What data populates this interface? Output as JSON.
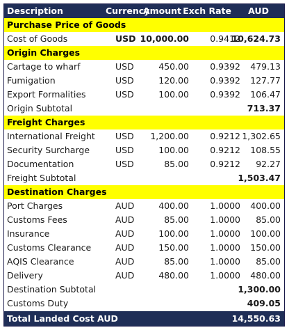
{
  "header": {
    "description": "Description",
    "currency": "Currency",
    "amount": "Amount",
    "exch_rate": "Exch Rate",
    "aud": "AUD"
  },
  "sections": {
    "purchase": {
      "title": "Purchase Price of Goods",
      "rows": [
        {
          "desc": "Cost of Goods",
          "cur": "USD",
          "amt": "10,000.00",
          "rate": "0.9412",
          "aud": "10,624.73"
        }
      ]
    },
    "origin": {
      "title": "Origin Charges",
      "rows": [
        {
          "desc": "Cartage to wharf",
          "cur": "USD",
          "amt": "450.00",
          "rate": "0.9392",
          "aud": "479.13"
        },
        {
          "desc": "Fumigation",
          "cur": "USD",
          "amt": "120.00",
          "rate": "0.9392",
          "aud": "127.77"
        },
        {
          "desc": "Export Formalities",
          "cur": "USD",
          "amt": "100.00",
          "rate": "0.9392",
          "aud": "106.47"
        }
      ],
      "subtotal_label": "Origin Subtotal",
      "subtotal": "713.37"
    },
    "freight": {
      "title": "Freight Charges",
      "rows": [
        {
          "desc": "International Freight",
          "cur": "USD",
          "amt": "1,200.00",
          "rate": "0.9212",
          "aud": "1,302.65"
        },
        {
          "desc": "Security Surcharge",
          "cur": "USD",
          "amt": "100.00",
          "rate": "0.9212",
          "aud": "108.55"
        },
        {
          "desc": "Documentation",
          "cur": "USD",
          "amt": "85.00",
          "rate": "0.9212",
          "aud": "92.27"
        }
      ],
      "subtotal_label": "Freight Subtotal",
      "subtotal": "1,503.47"
    },
    "destination": {
      "title": "Destination Charges",
      "rows": [
        {
          "desc": "Port Charges",
          "cur": "AUD",
          "amt": "400.00",
          "rate": "1.0000",
          "aud": "400.00"
        },
        {
          "desc": "Customs Fees",
          "cur": "AUD",
          "amt": "85.00",
          "rate": "1.0000",
          "aud": "85.00"
        },
        {
          "desc": "Insurance",
          "cur": "AUD",
          "amt": "100.00",
          "rate": "1.0000",
          "aud": "100.00"
        },
        {
          "desc": "Customs Clearance",
          "cur": "AUD",
          "amt": "150.00",
          "rate": "1.0000",
          "aud": "150.00"
        },
        {
          "desc": "AQIS Clearance",
          "cur": "AUD",
          "amt": "85.00",
          "rate": "1.0000",
          "aud": "85.00"
        },
        {
          "desc": "Delivery",
          "cur": "AUD",
          "amt": "480.00",
          "rate": "1.0000",
          "aud": "480.00"
        }
      ],
      "subtotal_label": "Destination Subtotal",
      "subtotal": "1,300.00"
    }
  },
  "customs_duty": {
    "label": "Customs Duty",
    "value": "409.05"
  },
  "total": {
    "label": "Total Landed Cost AUD",
    "value": "14,550.63"
  },
  "colors": {
    "header_bg": "#1f2e57",
    "section_bg": "#ffff00"
  }
}
